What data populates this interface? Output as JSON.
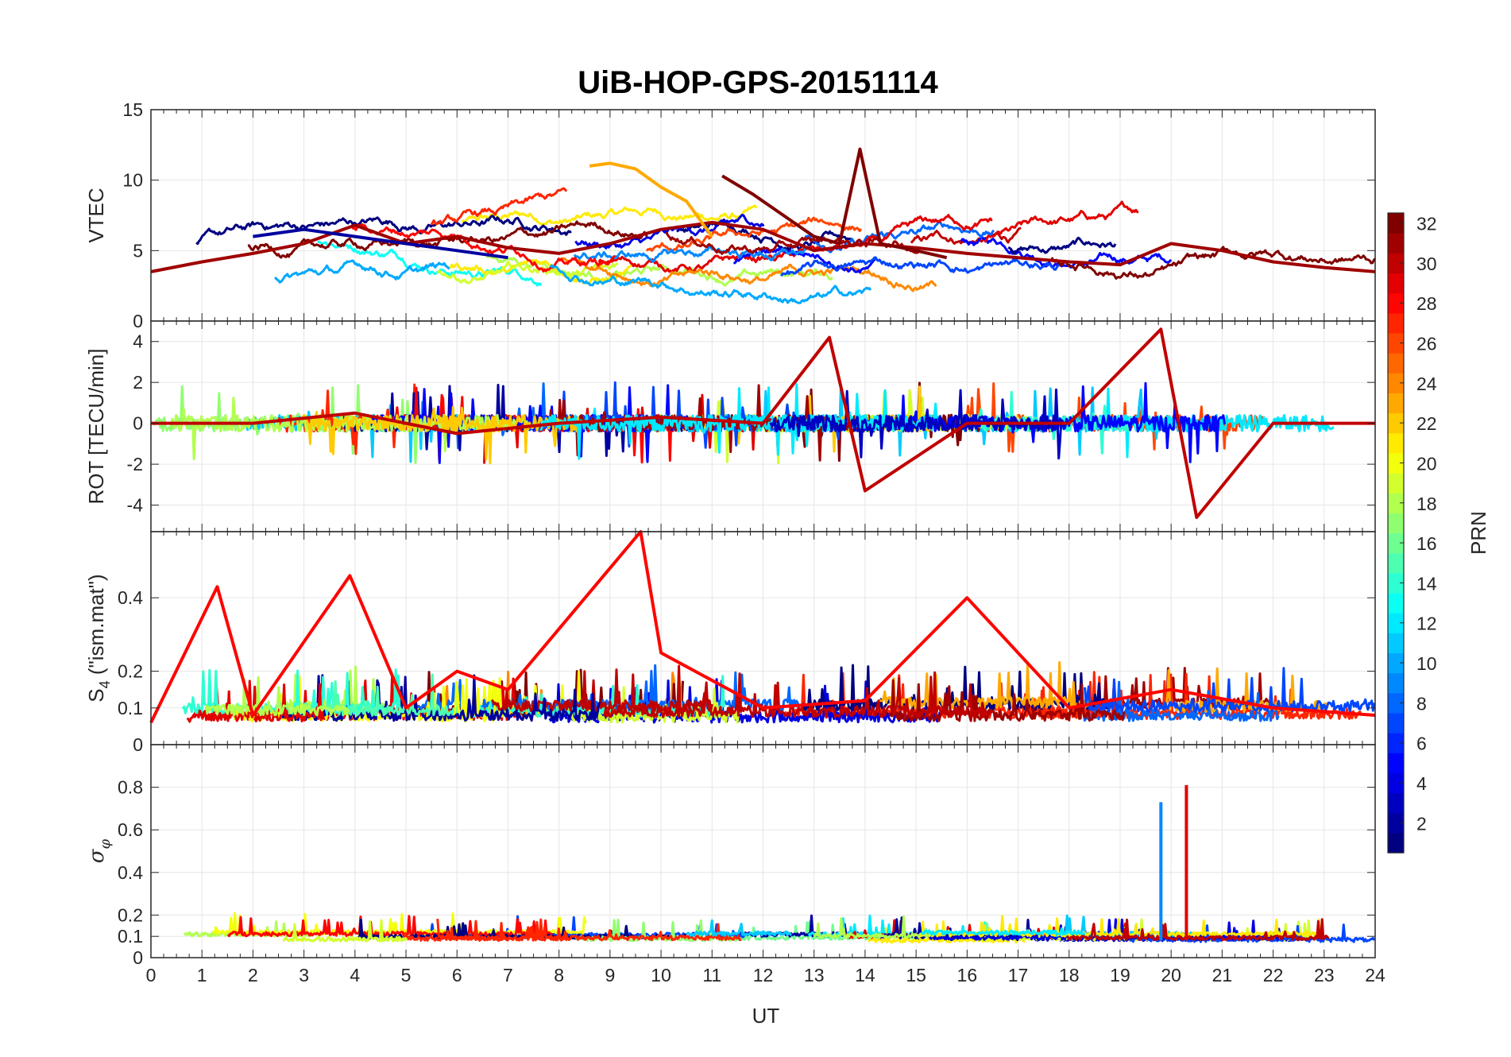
{
  "figure": {
    "title": "UiB-HOP-GPS-20151114",
    "xlabel": "UT",
    "x_ticks": [
      "0",
      "1",
      "2",
      "3",
      "4",
      "5",
      "6",
      "7",
      "8",
      "9",
      "10",
      "11",
      "12",
      "13",
      "14",
      "15",
      "16",
      "17",
      "18",
      "19",
      "20",
      "21",
      "22",
      "23",
      "24"
    ]
  },
  "chart_data": [
    {
      "type": "line",
      "id": "vtec",
      "ylabel": "VTEC",
      "ylim": [
        0,
        15
      ],
      "xlim": [
        0,
        24
      ],
      "y_ticks": [
        0,
        5,
        10,
        15
      ],
      "y_tick_labels": [
        "0",
        "5",
        "10",
        "15"
      ],
      "grid": true,
      "series": [
        {
          "prn": 31,
          "x": [
            0,
            1,
            2,
            3,
            4,
            5,
            6,
            7,
            8,
            9,
            10,
            11,
            12,
            13,
            14,
            15,
            16,
            17,
            18,
            19,
            20,
            21,
            22,
            23,
            24
          ],
          "values": [
            3.5,
            4.2,
            4.8,
            5.5,
            6.8,
            5.5,
            6.0,
            5.2,
            4.8,
            5.5,
            6.5,
            7.0,
            6.5,
            5.0,
            5.5,
            5.2,
            4.8,
            4.5,
            4.2,
            4.0,
            5.5,
            5.0,
            4.2,
            3.8,
            3.5
          ]
        },
        {
          "prn": 32,
          "x": [
            11.2,
            11.8,
            12.4,
            13.0,
            13.5,
            13.9,
            14.3,
            15.0,
            15.6
          ],
          "values": [
            10.3,
            9.0,
            7.5,
            6.0,
            5.5,
            12.2,
            5.5,
            5.0,
            4.5
          ]
        },
        {
          "prn": 23,
          "x": [
            8.6,
            9.0,
            9.5,
            10.0,
            10.5,
            11.0
          ],
          "values": [
            11.0,
            11.2,
            10.8,
            9.5,
            8.5,
            6.0
          ]
        },
        {
          "prn": 2,
          "x": [
            2.0,
            3.0,
            4.0,
            5.0,
            6.0,
            7.0
          ],
          "values": [
            6.0,
            6.5,
            6.0,
            5.5,
            5.0,
            4.5
          ]
        }
      ]
    },
    {
      "type": "line",
      "id": "rot",
      "ylabel": "ROT [TECU/min]",
      "ylim": [
        -5.3,
        5
      ],
      "xlim": [
        0,
        24
      ],
      "y_ticks": [
        -4,
        -2,
        0,
        2,
        4
      ],
      "y_tick_labels": [
        "-4",
        "-2",
        "0",
        "2",
        "4"
      ],
      "grid": true,
      "series": [
        {
          "prn": 30,
          "x": [
            0,
            2,
            4,
            6,
            8,
            10,
            12,
            13.3,
            14,
            16,
            18,
            19.8,
            20.5,
            22,
            24
          ],
          "values": [
            0,
            0,
            0.5,
            -0.5,
            0,
            0.3,
            0,
            4.2,
            -3.3,
            0,
            0,
            4.6,
            -4.6,
            0,
            0
          ]
        }
      ]
    },
    {
      "type": "line",
      "id": "s4",
      "ylabel": "S_4 (\"ism.mat\")",
      "ylabel_main": "S",
      "ylabel_sub": "4",
      "ylabel_rest": " (\"ism.mat\")",
      "ylim": [
        0,
        0.58
      ],
      "xlim": [
        0,
        24
      ],
      "y_ticks": [
        0,
        0.1,
        0.2,
        0.4
      ],
      "y_tick_labels": [
        "0",
        "0.1",
        "0.2",
        "0.4"
      ],
      "grid": true,
      "series": [
        {
          "prn": 28,
          "x": [
            0,
            1.3,
            2,
            3.9,
            5,
            6,
            7,
            9.6,
            10,
            12,
            14,
            16,
            18,
            20,
            22,
            24
          ],
          "values": [
            0.06,
            0.43,
            0.08,
            0.46,
            0.1,
            0.2,
            0.15,
            0.58,
            0.25,
            0.1,
            0.12,
            0.4,
            0.1,
            0.15,
            0.1,
            0.08
          ]
        }
      ]
    },
    {
      "type": "line",
      "id": "sigma_phi",
      "ylabel": "σ_φ",
      "ylabel_main": "σ",
      "ylabel_sub": "φ",
      "ylim": [
        0,
        1
      ],
      "xlim": [
        0,
        24
      ],
      "y_ticks": [
        0,
        0.1,
        0.2,
        0.4,
        0.6,
        0.8
      ],
      "y_tick_labels": [
        "0",
        "0.1",
        "0.2",
        "0.4",
        "0.6",
        "0.8"
      ],
      "grid": true,
      "series": [
        {
          "prn": 9,
          "x": [
            19.8
          ],
          "values": [
            0.73
          ]
        },
        {
          "prn": 29,
          "x": [
            20.3
          ],
          "values": [
            0.81
          ]
        }
      ]
    }
  ],
  "colorbar": {
    "label": "PRN",
    "colormap": "jet",
    "clim": [
      1,
      32
    ],
    "ticks": [
      2,
      4,
      6,
      8,
      10,
      12,
      14,
      16,
      18,
      20,
      22,
      24,
      26,
      28,
      30,
      32
    ],
    "tick_labels": [
      "2",
      "4",
      "6",
      "8",
      "10",
      "12",
      "14",
      "16",
      "18",
      "20",
      "22",
      "24",
      "26",
      "28",
      "30",
      "32"
    ]
  },
  "colors": {
    "axes": "#262626",
    "grid": "#e6e6e6",
    "background": "#ffffff"
  }
}
